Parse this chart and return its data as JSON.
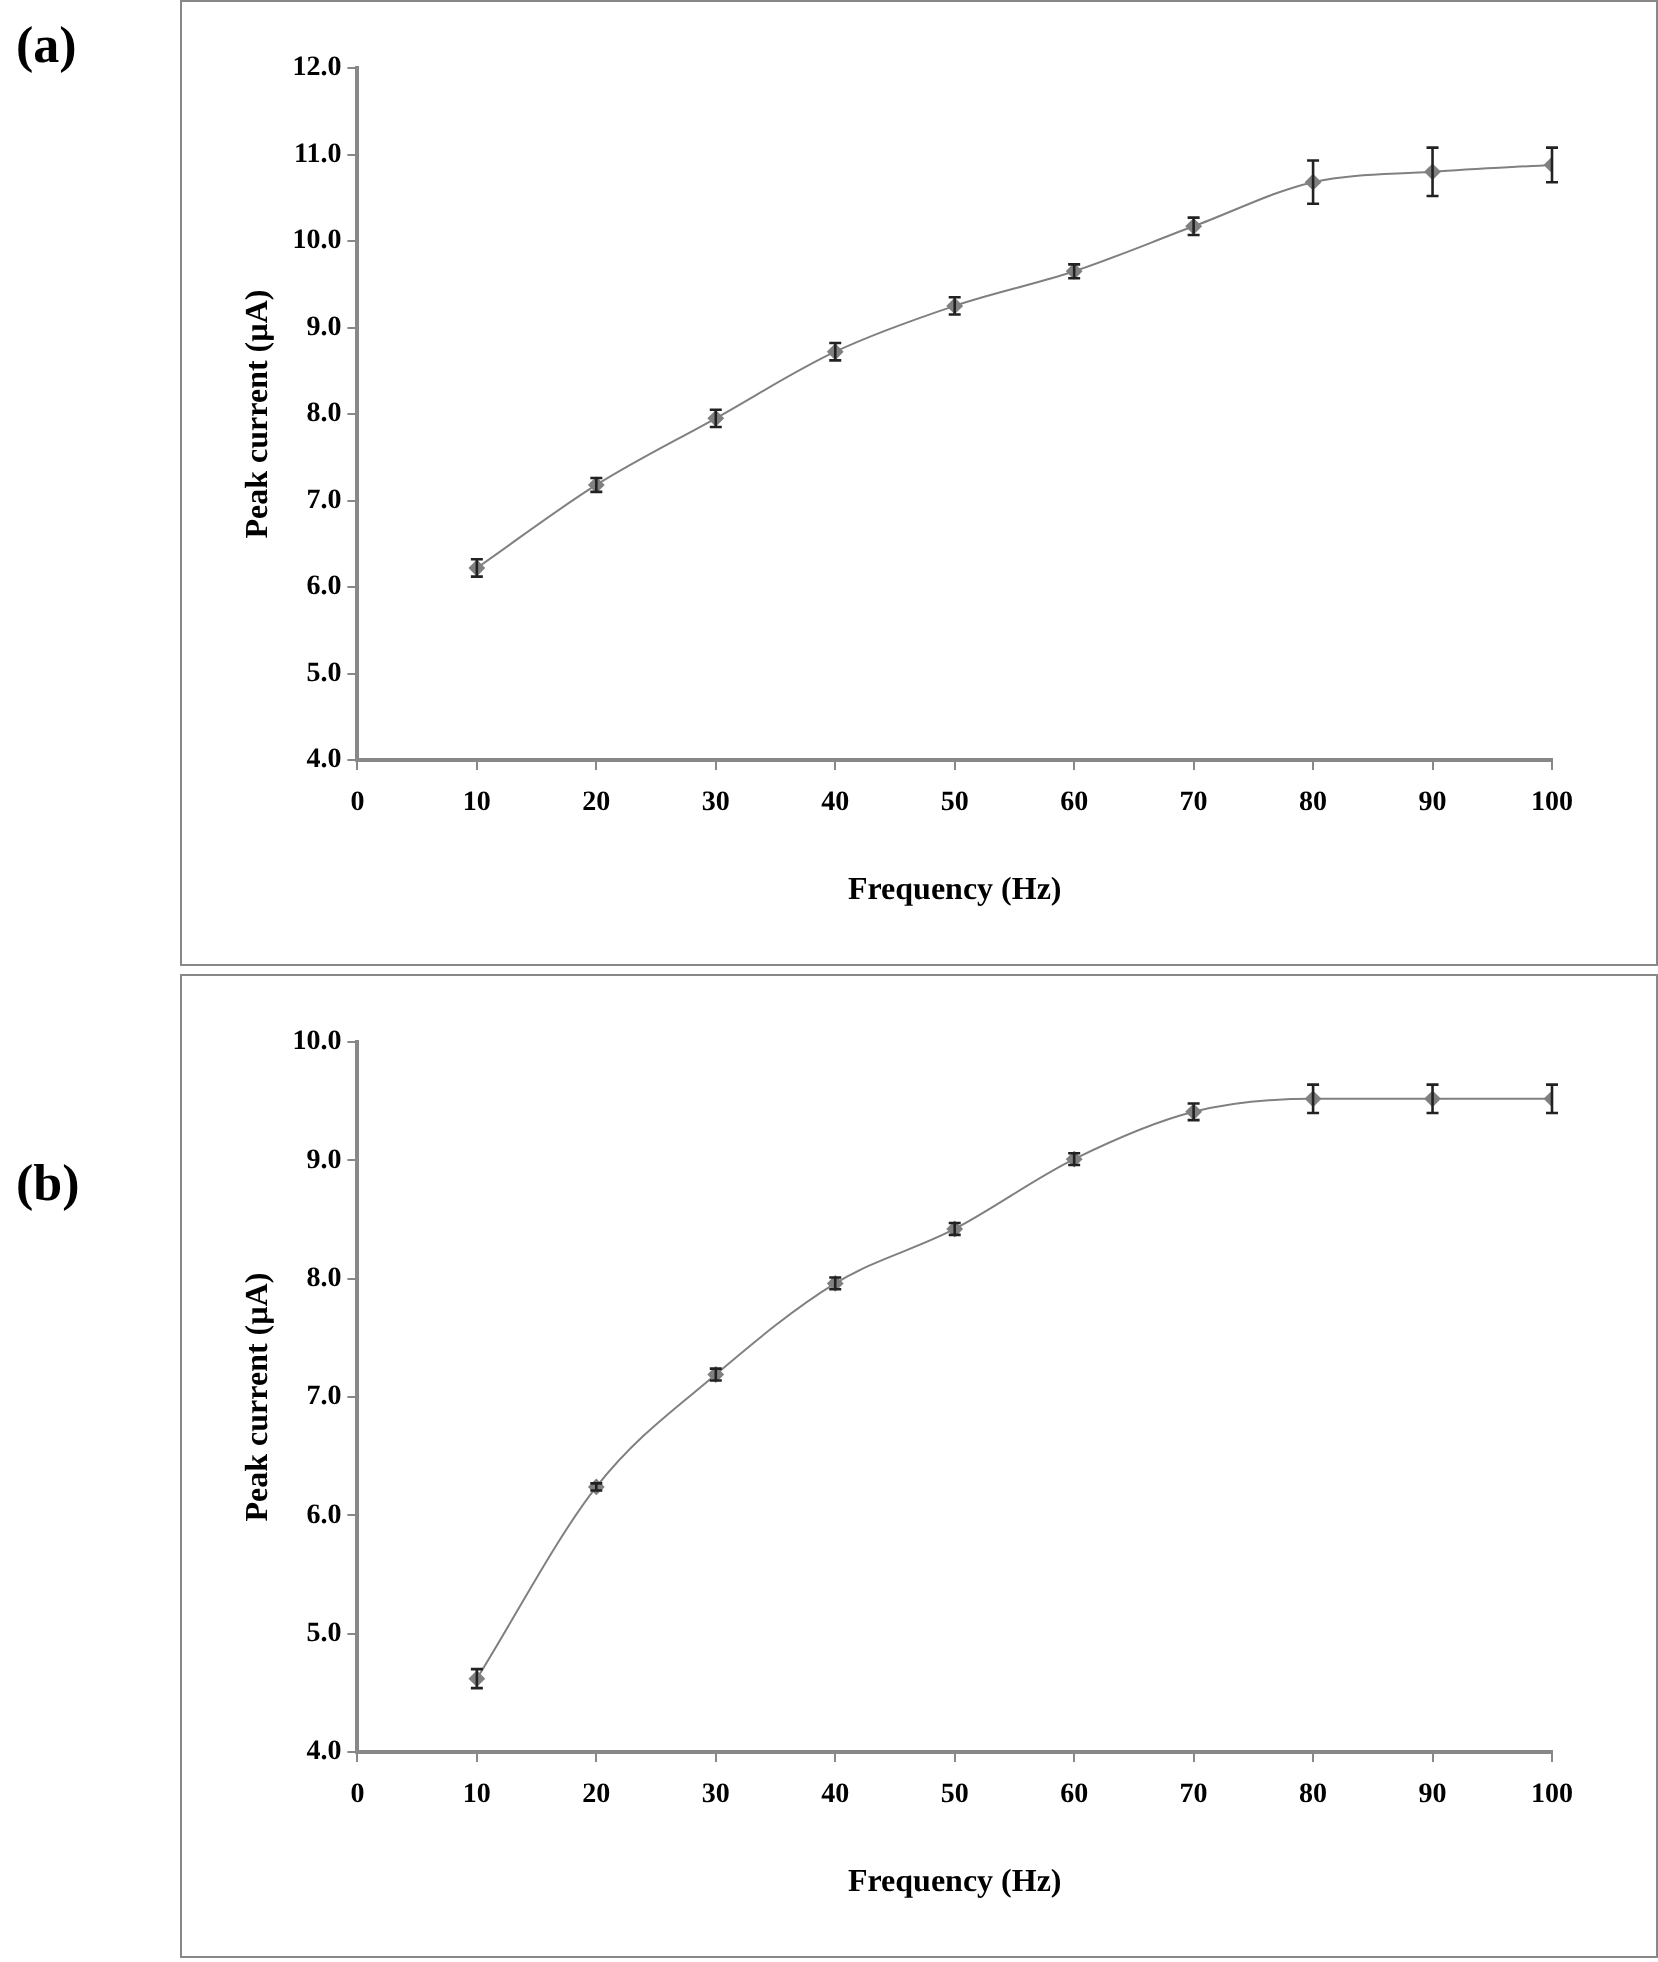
{
  "chart_data": [
    {
      "type": "line",
      "title": "(a)",
      "xlabel": "Frequency (Hz)",
      "ylabel": "Peak current (µA)",
      "x": [
        10,
        20,
        30,
        40,
        50,
        60,
        70,
        80,
        90,
        100
      ],
      "values": [
        6.22,
        7.18,
        7.95,
        8.72,
        9.25,
        9.65,
        10.17,
        10.68,
        10.8,
        10.88
      ],
      "errors": [
        0.1,
        0.08,
        0.1,
        0.1,
        0.1,
        0.08,
        0.1,
        0.25,
        0.28,
        0.2
      ],
      "color": "#808080",
      "marker": "diamond",
      "xlim": [
        0,
        100
      ],
      "xticks": [
        0,
        10,
        20,
        30,
        40,
        50,
        60,
        70,
        80,
        90,
        100
      ],
      "ylim": [
        4,
        12
      ],
      "yticks": [
        {
          "value": 4,
          "label": "4.0"
        },
        {
          "value": 5,
          "label": "5.0"
        },
        {
          "value": 6,
          "label": "6.0"
        },
        {
          "value": 7,
          "label": "7.0"
        },
        {
          "value": 8,
          "label": "8.0"
        },
        {
          "value": 9,
          "label": "9.0"
        },
        {
          "value": 10,
          "label": "10.0"
        },
        {
          "value": 11,
          "label": "11.0"
        },
        {
          "value": 12,
          "label": "12.0"
        }
      ],
      "grid": false,
      "legend": false
    },
    {
      "type": "line",
      "title": "(b)",
      "xlabel": "Frequency (Hz)",
      "ylabel": "Peak current (µA)",
      "x": [
        10,
        20,
        30,
        40,
        50,
        60,
        70,
        80,
        90,
        100
      ],
      "values": [
        4.62,
        6.24,
        7.19,
        7.96,
        8.42,
        9.01,
        9.41,
        9.52,
        9.52,
        9.52
      ],
      "errors": [
        0.08,
        0.03,
        0.05,
        0.05,
        0.05,
        0.05,
        0.07,
        0.12,
        0.12,
        0.12
      ],
      "color": "#808080",
      "marker": "diamond",
      "xlim": [
        0,
        100
      ],
      "xticks": [
        0,
        10,
        20,
        30,
        40,
        50,
        60,
        70,
        80,
        90,
        100
      ],
      "ylim": [
        4,
        10
      ],
      "yticks": [
        {
          "value": 4,
          "label": "4.0"
        },
        {
          "value": 5,
          "label": "5.0"
        },
        {
          "value": 6,
          "label": "6.0"
        },
        {
          "value": 7,
          "label": "7.0"
        },
        {
          "value": 8,
          "label": "8.0"
        },
        {
          "value": 9,
          "label": "9.0"
        },
        {
          "value": 10,
          "label": "10.0"
        }
      ],
      "grid": false,
      "legend": false
    }
  ]
}
